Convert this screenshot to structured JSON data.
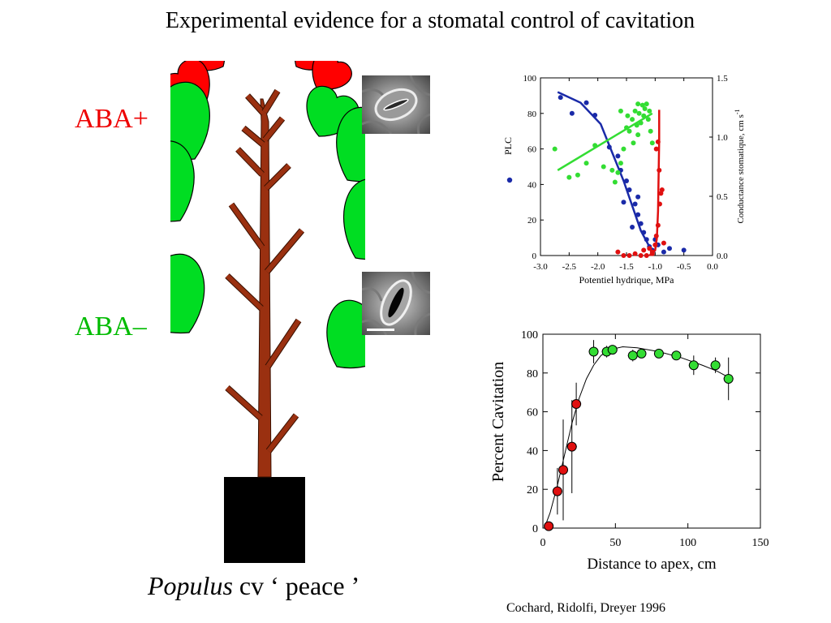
{
  "title": "Experimental evidence for a stomatal control of cavitation",
  "labels": {
    "aba_plus": "ABA+",
    "aba_minus": "ABA–",
    "caption_italic": "Populus",
    "caption_rest": " cv ‘ peace ’",
    "citation": "Cochard, Ridolfi, Dreyer 1996"
  },
  "colors": {
    "aba_plus": "#ee0000",
    "aba_minus": "#00bb00",
    "leaf_red": "#ff0000",
    "leaf_green": "#00dd22",
    "stem": "#9a3010",
    "pot": "#000000",
    "blue": "#1a2aa8",
    "red": "#e01010",
    "green": "#33dd33"
  },
  "chart_data": [
    {
      "type": "scatter",
      "xlabel": "Potentiel hydrique, MPa",
      "ylabel": "PLC",
      "y2label": "Conductance stomatique, cm s",
      "y2label_sup": "-1",
      "xlim": [
        -3.0,
        0.0
      ],
      "ylim": [
        0,
        100
      ],
      "y2lim": [
        0,
        1.5
      ],
      "xticks": [
        -3.0,
        -2.5,
        -2.0,
        -1.5,
        -1.0,
        -0.5,
        0.0
      ],
      "xtick_labels": [
        "-3.0",
        "-2.5",
        "-2.0",
        "-1.5",
        "-1.0",
        "-0.5",
        "0.0"
      ],
      "yticks": [
        0,
        20,
        40,
        60,
        80,
        100
      ],
      "y2ticks": [
        0,
        0.5,
        1.0,
        1.5
      ],
      "y2tick_labels": [
        "0.0",
        "0.5",
        "1.0",
        "1.5"
      ],
      "series": [
        {
          "color": "#1a2aa8",
          "axis": "left",
          "points": [
            [
              -2.65,
              89
            ],
            [
              -2.45,
              80
            ],
            [
              -2.2,
              86
            ],
            [
              -2.05,
              79
            ],
            [
              -1.8,
              61
            ],
            [
              -1.65,
              56
            ],
            [
              -1.6,
              48
            ],
            [
              -1.5,
              42
            ],
            [
              -1.45,
              37
            ],
            [
              -1.35,
              29
            ],
            [
              -1.3,
              23
            ],
            [
              -1.25,
              18
            ],
            [
              -1.2,
              13
            ],
            [
              -1.15,
              9
            ],
            [
              -1.1,
              5
            ],
            [
              -1.05,
              3
            ],
            [
              -0.95,
              6
            ],
            [
              -0.85,
              2
            ],
            [
              -0.75,
              4
            ],
            [
              -0.5,
              3
            ],
            [
              -1.4,
              16
            ],
            [
              -1.55,
              30
            ],
            [
              -1.3,
              33
            ],
            [
              -1.0,
              9
            ]
          ],
          "fit": [
            [
              -2.7,
              92
            ],
            [
              -2.3,
              86
            ],
            [
              -1.95,
              74
            ],
            [
              -1.75,
              58
            ],
            [
              -1.55,
              42
            ],
            [
              -1.4,
              28
            ],
            [
              -1.25,
              14
            ],
            [
              -1.1,
              5
            ],
            [
              -1.0,
              2
            ]
          ]
        },
        {
          "color": "#e01010",
          "axis": "left",
          "points": [
            [
              -1.65,
              2
            ],
            [
              -1.55,
              0
            ],
            [
              -1.45,
              0
            ],
            [
              -1.35,
              1
            ],
            [
              -1.25,
              0
            ],
            [
              -1.15,
              0
            ],
            [
              -1.1,
              4
            ],
            [
              -1.05,
              1
            ],
            [
              -1.0,
              6
            ],
            [
              -0.98,
              11
            ],
            [
              -0.95,
              17
            ],
            [
              -0.92,
              29
            ],
            [
              -0.9,
              35
            ],
            [
              -0.88,
              37
            ],
            [
              -0.95,
              64
            ],
            [
              -0.98,
              60
            ],
            [
              -0.93,
              48
            ],
            [
              -1.05,
              2
            ],
            [
              -1.2,
              3
            ],
            [
              -0.85,
              7
            ]
          ],
          "fit": [
            [
              -1.1,
              0
            ],
            [
              -1.0,
              3
            ],
            [
              -0.97,
              10
            ],
            [
              -0.95,
              25
            ],
            [
              -0.94,
              45
            ],
            [
              -0.93,
              65
            ],
            [
              -0.93,
              82
            ]
          ]
        },
        {
          "color": "#33dd33",
          "axis": "right",
          "points": [
            [
              -2.75,
              0.9
            ],
            [
              -2.5,
              0.66
            ],
            [
              -2.35,
              0.68
            ],
            [
              -2.2,
              0.78
            ],
            [
              -2.05,
              0.93
            ],
            [
              -1.9,
              0.75
            ],
            [
              -1.75,
              0.72
            ],
            [
              -1.65,
              0.7
            ],
            [
              -1.6,
              0.78
            ],
            [
              -1.55,
              0.9
            ],
            [
              -1.5,
              1.08
            ],
            [
              -1.48,
              1.18
            ],
            [
              -1.45,
              1.05
            ],
            [
              -1.4,
              1.15
            ],
            [
              -1.38,
              0.95
            ],
            [
              -1.35,
              1.22
            ],
            [
              -1.32,
              1.1
            ],
            [
              -1.3,
              1.02
            ],
            [
              -1.28,
              1.2
            ],
            [
              -1.25,
              1.12
            ],
            [
              -1.22,
              1.27
            ],
            [
              -1.2,
              1.18
            ],
            [
              -1.18,
              1.24
            ],
            [
              -1.15,
              1.28
            ],
            [
              -1.12,
              1.15
            ],
            [
              -1.1,
              1.22
            ],
            [
              -1.08,
              1.05
            ],
            [
              -1.05,
              0.95
            ],
            [
              -1.3,
              1.28
            ],
            [
              -1.6,
              1.22
            ],
            [
              -1.7,
              0.62
            ]
          ],
          "fit": [
            [
              -2.7,
              0.72
            ],
            [
              -1.05,
              1.2
            ]
          ]
        }
      ]
    },
    {
      "type": "scatter",
      "xlabel": "Distance to apex, cm",
      "ylabel": "Percent Cavitation",
      "xlim": [
        0,
        150
      ],
      "ylim": [
        0,
        100
      ],
      "xticks": [
        0,
        50,
        100,
        150
      ],
      "yticks": [
        0,
        20,
        40,
        60,
        80,
        100
      ],
      "series": [
        {
          "color": "#e01010",
          "points": [
            [
              4,
              1,
              1
            ],
            [
              10,
              19,
              12
            ],
            [
              14,
              30,
              26
            ],
            [
              20,
              42,
              24
            ],
            [
              23,
              64,
              11
            ]
          ]
        },
        {
          "color": "#33dd33",
          "points": [
            [
              35,
              91,
              6
            ],
            [
              44,
              91,
              3
            ],
            [
              48,
              92,
              2
            ],
            [
              62,
              89,
              3
            ],
            [
              68,
              90,
              2
            ],
            [
              80,
              90,
              2
            ],
            [
              92,
              89,
              2
            ],
            [
              104,
              84,
              5
            ],
            [
              119,
              84,
              4
            ],
            [
              128,
              77,
              11
            ]
          ]
        }
      ],
      "fit": [
        [
          1,
          0
        ],
        [
          5,
          8
        ],
        [
          10,
          22
        ],
        [
          15,
          38
        ],
        [
          20,
          54
        ],
        [
          25,
          67
        ],
        [
          30,
          77
        ],
        [
          35,
          84
        ],
        [
          40,
          89
        ],
        [
          46,
          92
        ],
        [
          55,
          93.5
        ],
        [
          65,
          93
        ],
        [
          80,
          91
        ],
        [
          95,
          88
        ],
        [
          110,
          84
        ],
        [
          120,
          81
        ],
        [
          130,
          77
        ]
      ]
    }
  ]
}
